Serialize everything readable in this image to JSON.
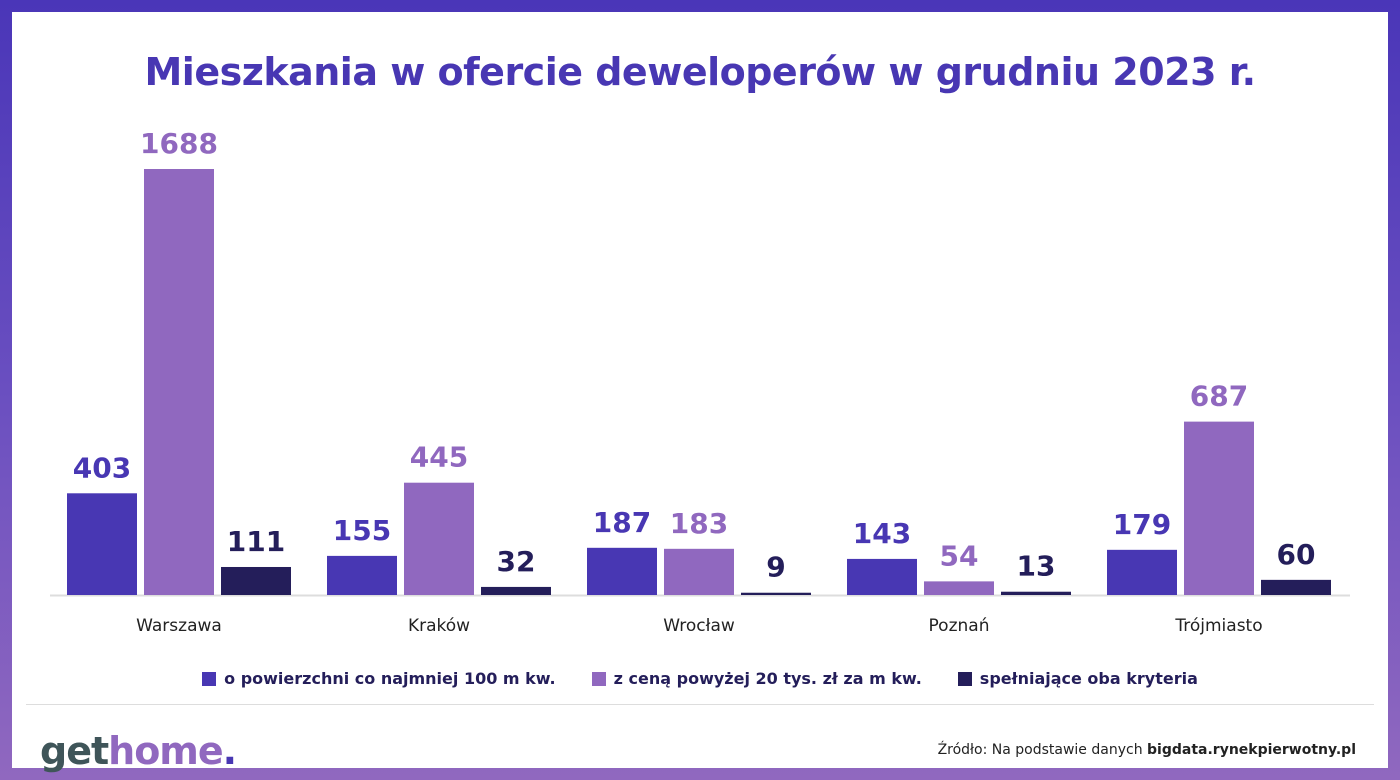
{
  "chart_data": {
    "type": "bar",
    "title": "Mieszkania w ofercie deweloperów w grudniu 2023 r.",
    "categories": [
      "Warszawa",
      "Kraków",
      "Wrocław",
      "Poznań",
      "Trójmiasto"
    ],
    "series": [
      {
        "name": "o powierzchni co najmniej 100 m kw.",
        "color": "#4837b3",
        "values": [
          403,
          155,
          187,
          143,
          179
        ]
      },
      {
        "name": "z ceną powyżej 20 tys. zł za m kw.",
        "color": "#9068bf",
        "values": [
          1688,
          445,
          183,
          54,
          687
        ]
      },
      {
        "name": "spełniające oba kryteria",
        "color": "#241e5a",
        "values": [
          111,
          32,
          9,
          13,
          60
        ]
      }
    ],
    "ylim": [
      0,
      1688
    ],
    "grid": false,
    "legend": "bottom"
  },
  "logo": {
    "part1": "get",
    "part2": "home",
    "part3": "."
  },
  "source": {
    "prefix": "Źródło: Na podstawie danych ",
    "link": "bigdata.rynekpierwotny.pl"
  }
}
